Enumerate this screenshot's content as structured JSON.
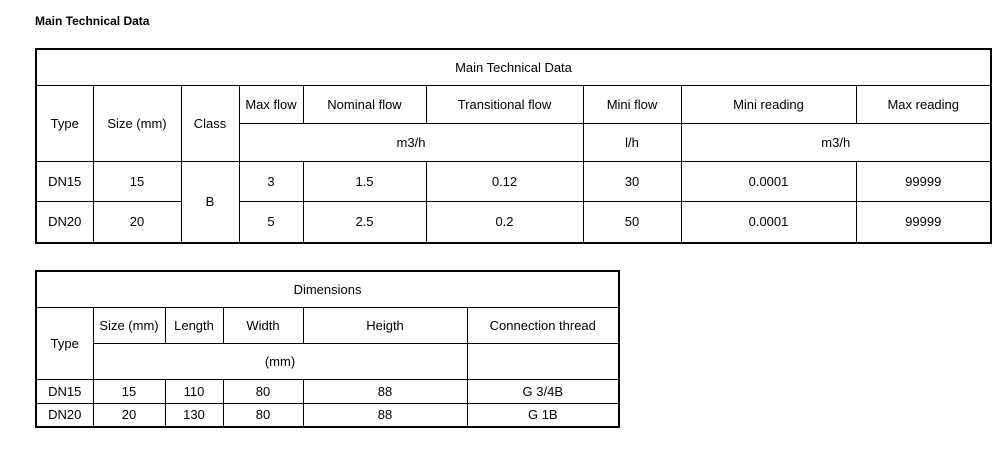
{
  "heading": "Main Technical Data",
  "technical_table": {
    "title": "Main Technical Data",
    "headers": [
      "Type",
      "Size (mm)",
      "Class",
      "Max flow",
      "Nominal flow",
      "Transitional flow",
      "Mini flow",
      "Mini reading",
      "Max reading"
    ],
    "units": [
      "m3/h",
      "l/h",
      "m3/h"
    ],
    "class": "B",
    "rows": [
      [
        "DN15",
        "15",
        "3",
        "1.5",
        "0.12",
        "30",
        "0.0001",
        "99999"
      ],
      [
        "DN20",
        "20",
        "5",
        "2.5",
        "0.2",
        "50",
        "0.0001",
        "99999"
      ]
    ]
  },
  "dimensions_table": {
    "title": "Dimensions",
    "headers": [
      "Type",
      "Size (mm)",
      "Length",
      "Width",
      "Heigth",
      "Connection thread"
    ],
    "unit": "(mm)",
    "rows": [
      [
        "DN15",
        "15",
        "110",
        "80",
        "88",
        "G 3/4B"
      ],
      [
        "DN20",
        "20",
        "130",
        "80",
        "88",
        "G 1B"
      ]
    ]
  }
}
